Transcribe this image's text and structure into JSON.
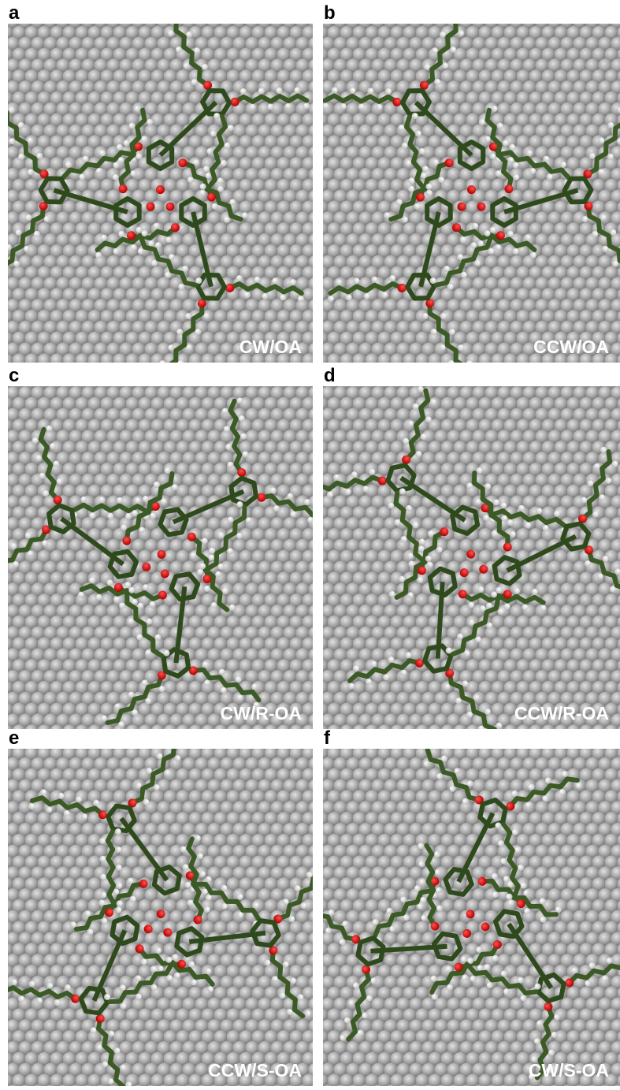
{
  "panels": [
    {
      "label": "a",
      "caption": "CW/OA"
    },
    {
      "label": "b",
      "caption": "CCW/OA"
    },
    {
      "label": "c",
      "caption": "CW/R-OA"
    },
    {
      "label": "d",
      "caption": "CCW/R-OA"
    },
    {
      "label": "e",
      "caption": "CCW/S-OA"
    },
    {
      "label": "f",
      "caption": "CW/S-OA"
    }
  ]
}
